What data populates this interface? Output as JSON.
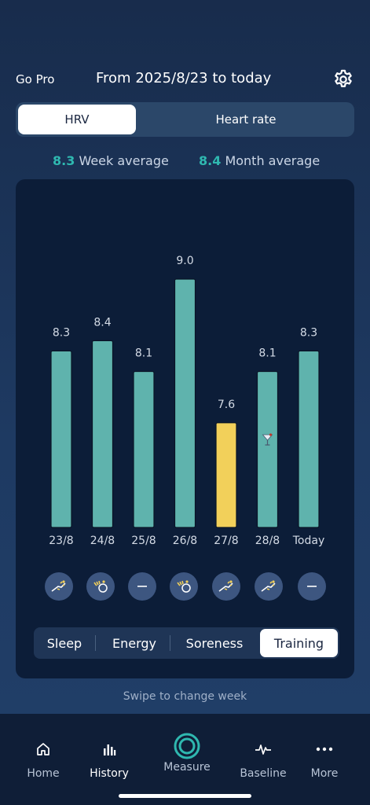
{
  "header": {
    "go_pro": "Go Pro",
    "date_range": "From 2025/8/23 to today",
    "settings_icon": "gear-icon"
  },
  "metric_toggle": {
    "options": [
      "HRV",
      "Heart rate"
    ],
    "selected": "HRV"
  },
  "averages": {
    "week_value": "8.3",
    "week_label": "Week average",
    "month_value": "8.4",
    "month_label": "Month average"
  },
  "chart_data": {
    "type": "bar",
    "categories": [
      "23/8",
      "24/8",
      "25/8",
      "26/8",
      "27/8",
      "28/8",
      "Today"
    ],
    "values": [
      8.3,
      8.4,
      8.1,
      9.0,
      7.6,
      8.1,
      8.3
    ],
    "value_labels": [
      "8.3",
      "8.4",
      "8.1",
      "9.0",
      "7.6",
      "8.1",
      "8.3"
    ],
    "highlight_index": 4,
    "colors": {
      "normal": "#5fb3ad",
      "highlight": "#f2d05a"
    },
    "annotation": {
      "index": 5,
      "icon": "cocktail-icon"
    },
    "grid": false
  },
  "day_icons": [
    {
      "icon": "training-icon",
      "label": "23/8"
    },
    {
      "icon": "cycling-icon",
      "label": "24/8"
    },
    {
      "icon": "dash-icon",
      "label": "25/8"
    },
    {
      "icon": "cycling-icon",
      "label": "26/8"
    },
    {
      "icon": "training-icon",
      "label": "27/8"
    },
    {
      "icon": "training-icon",
      "label": "28/8"
    },
    {
      "icon": "dash-icon",
      "label": "Today"
    }
  ],
  "category_tabs": {
    "items": [
      "Sleep",
      "Energy",
      "Soreness",
      "Training"
    ],
    "selected": "Training"
  },
  "swipe_hint": "Swipe to change week",
  "nav": {
    "items": [
      {
        "label": "Home",
        "icon": "home-icon"
      },
      {
        "label": "History",
        "icon": "bar-chart-icon"
      },
      {
        "label": "Measure",
        "icon": "measure-ring-icon"
      },
      {
        "label": "Baseline",
        "icon": "pulse-icon"
      },
      {
        "label": "More",
        "icon": "more-dots-icon"
      }
    ],
    "active": "History"
  },
  "colors": {
    "accent_teal": "#2fb8b0",
    "bar_teal": "#5fb3ad",
    "bar_yellow": "#f2d05a"
  }
}
